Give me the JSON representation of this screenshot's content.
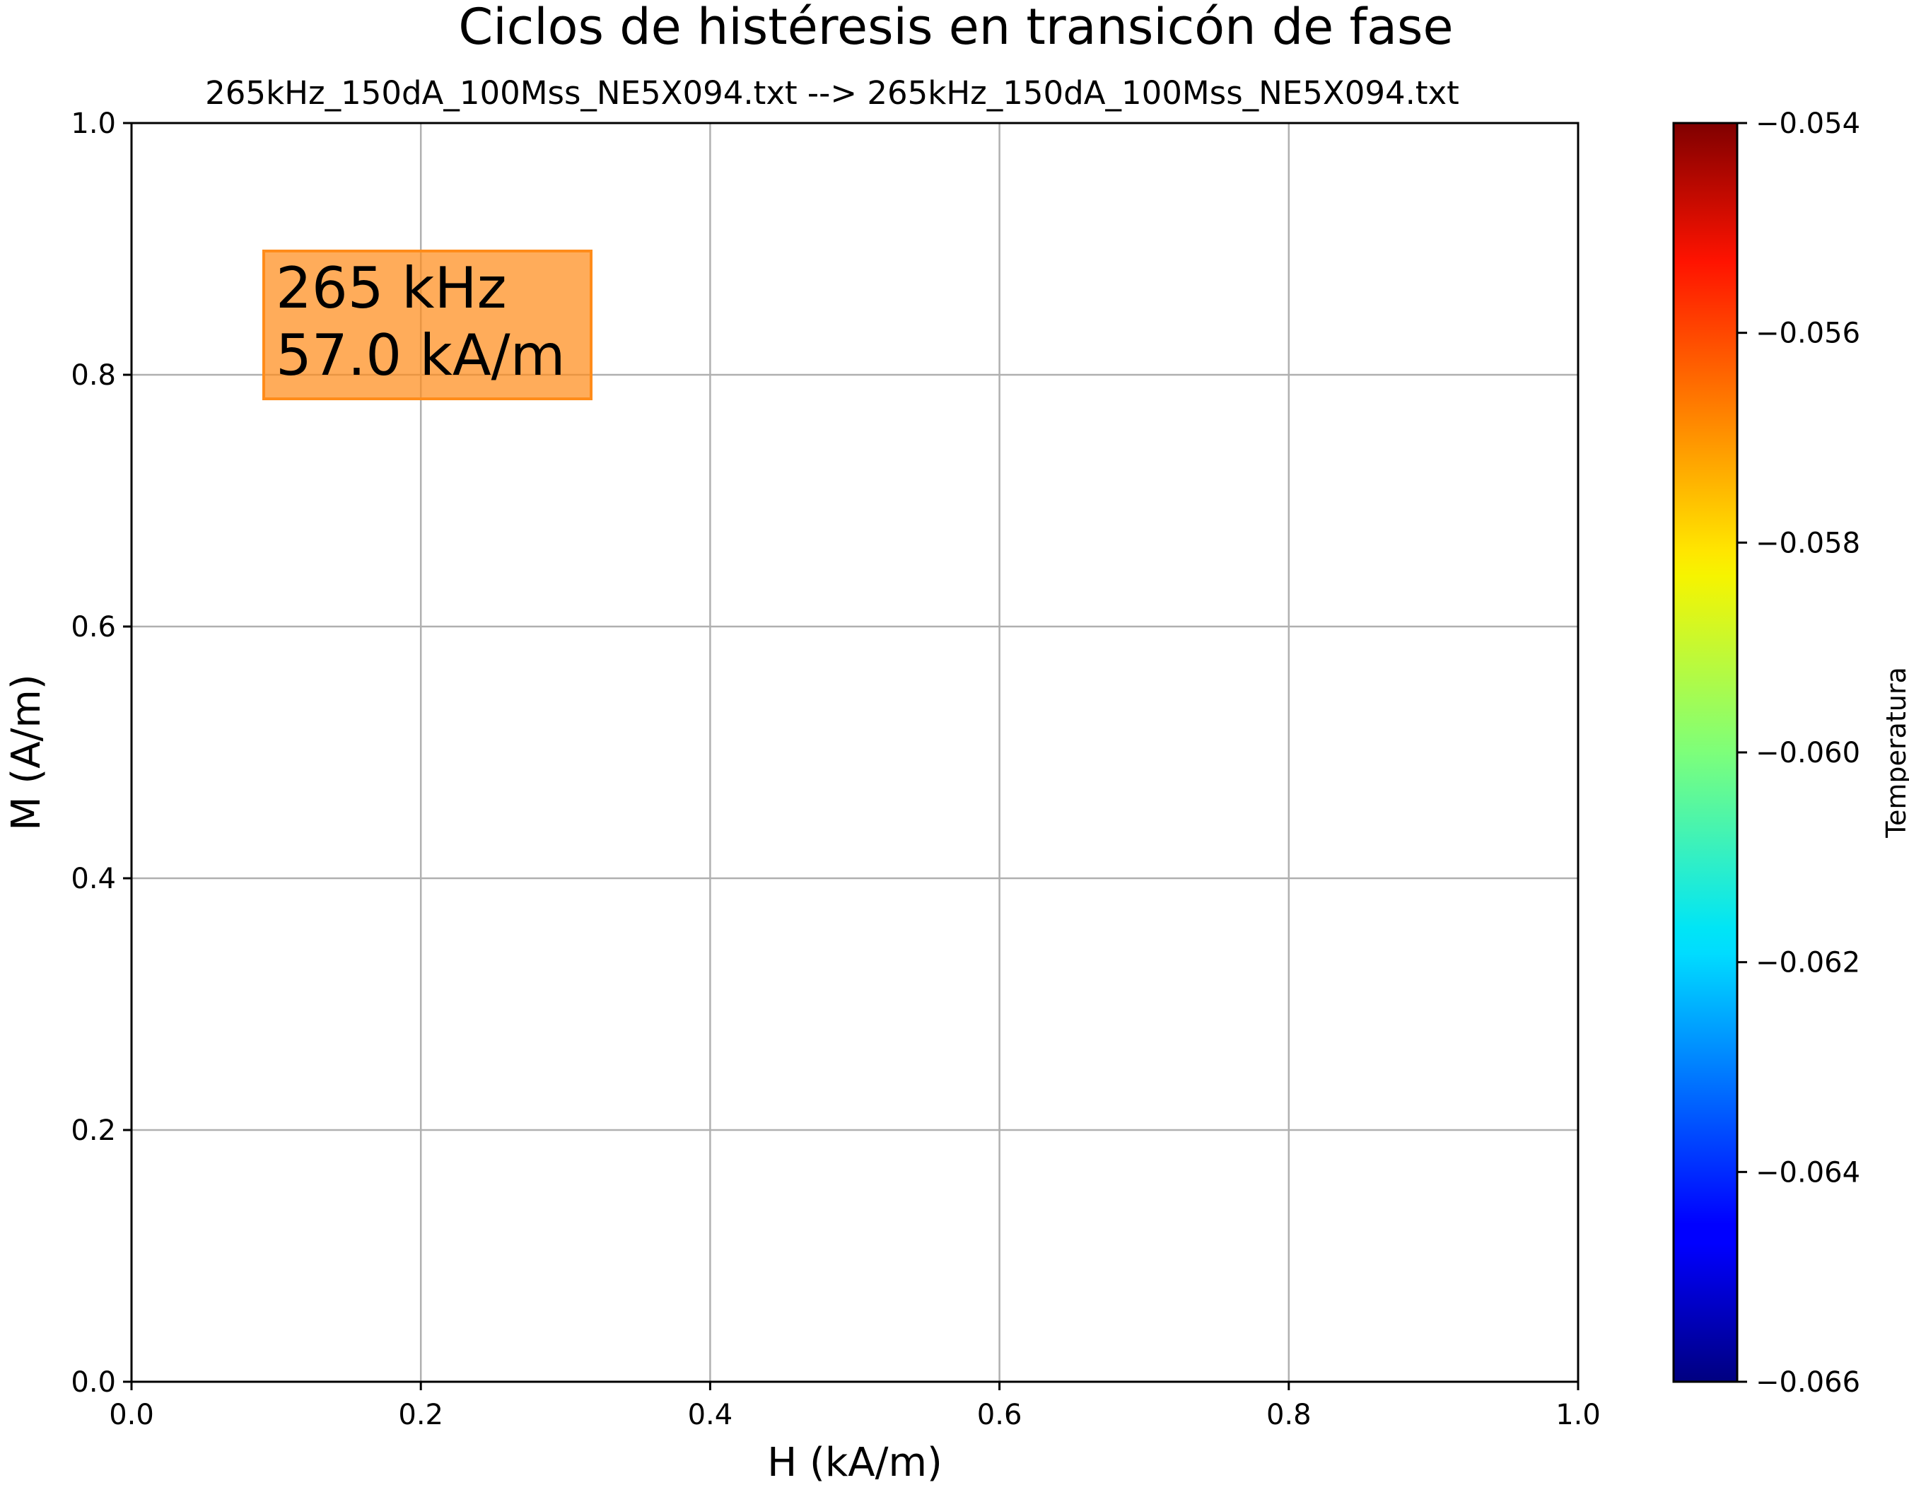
{
  "chart_data": {
    "type": "line",
    "title": "Ciclos de histéresis en transicón de fase",
    "subtitle": "265kHz_150dA_100Mss_NE5X094.txt --> 265kHz_150dA_100Mss_NE5X094.txt",
    "xlabel": "H (kA/m)",
    "ylabel": "M (A/m)",
    "xlim": [
      0,
      1
    ],
    "ylim": [
      0,
      1
    ],
    "xticks": [
      "0.0",
      "0.2",
      "0.4",
      "0.6",
      "0.8",
      "1.0"
    ],
    "yticks": [
      "0.0",
      "0.2",
      "0.4",
      "0.6",
      "0.8",
      "1.0"
    ],
    "grid": true,
    "series": [],
    "annotation": {
      "lines": [
        "265 kHz",
        "57.0 kA/m"
      ],
      "background": "#ff8c1a",
      "position": "top-left"
    },
    "colorbar": {
      "label": "Temperatura",
      "colormap": "jet",
      "range": [
        -0.066,
        -0.054
      ],
      "ticks": [
        "−0.054",
        "−0.056",
        "−0.058",
        "−0.060",
        "−0.062",
        "−0.064",
        "−0.066"
      ]
    }
  }
}
